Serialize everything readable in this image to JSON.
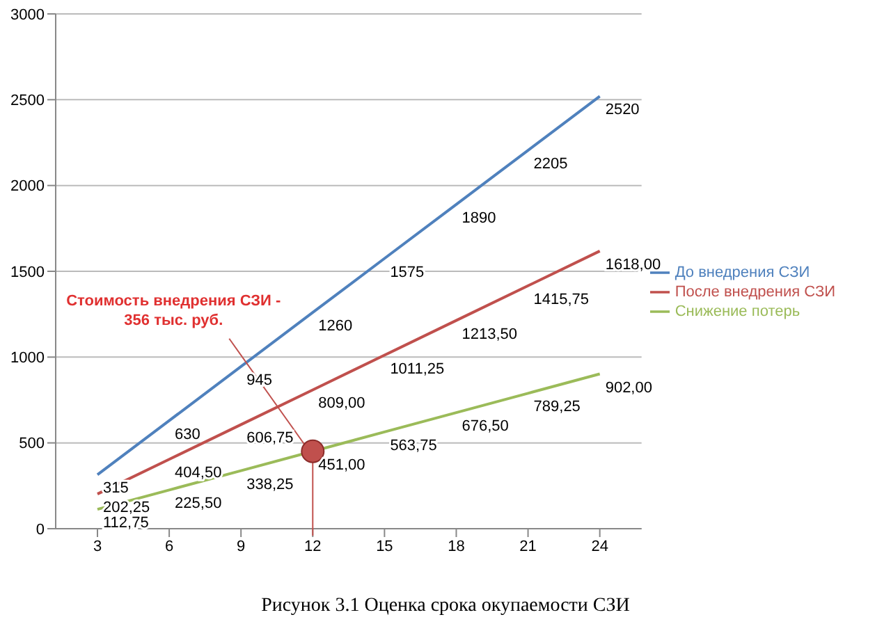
{
  "chart_data": {
    "type": "line",
    "title": "Рисунок 3.1  Оценка срока окупаемости СЗИ",
    "categories": [
      "3",
      "6",
      "9",
      "12",
      "15",
      "18",
      "21",
      "24"
    ],
    "series": [
      {
        "name": "До внедрения СЗИ",
        "color": "#4f81bd",
        "values": [
          315,
          630,
          945,
          1260,
          1575,
          1890,
          2205,
          2520
        ],
        "value_labels": [
          "315",
          "630",
          "945",
          "1260",
          "1575",
          "1890",
          "2205",
          "2520"
        ]
      },
      {
        "name": "После внедрения СЗИ",
        "color": "#c0504d",
        "values": [
          202.25,
          404.5,
          606.75,
          809,
          1011.25,
          1213.5,
          1415.75,
          1618
        ],
        "value_labels": [
          "202,25",
          "404,50",
          "606,75",
          "809,00",
          "1011,25",
          "1213,50",
          "1415,75",
          "1618,00"
        ]
      },
      {
        "name": "Снижение потерь",
        "color": "#9bbb59",
        "values": [
          112.75,
          225.5,
          338.25,
          451,
          563.75,
          676.5,
          789.25,
          902
        ],
        "value_labels": [
          "112,75",
          "225,50",
          "338,25",
          "451,00",
          "563,75",
          "676,50",
          "789,25",
          "902,00"
        ]
      }
    ],
    "ylim": [
      0,
      3000
    ],
    "yticks": [
      0,
      500,
      1000,
      1500,
      2000,
      2500,
      3000
    ],
    "grid": "y",
    "legend": "right",
    "marker": "none",
    "line_style": "solid",
    "annotations": [
      {
        "text": "Стоимость  внедрения  СЗИ - 356 тыс. руб.",
        "x": "12",
        "y": 451
      }
    ]
  }
}
